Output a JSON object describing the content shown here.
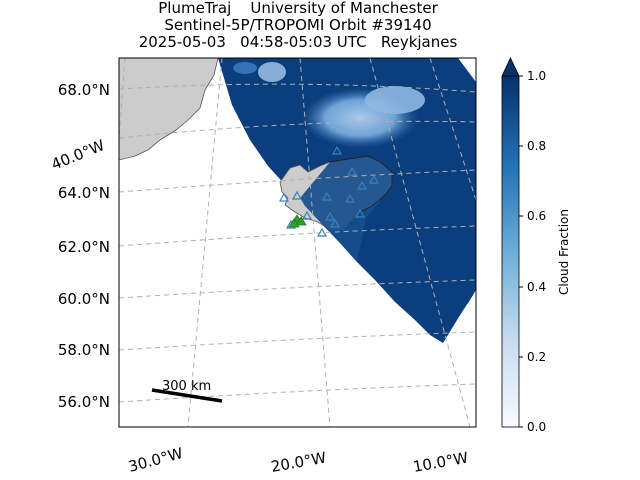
{
  "title": {
    "line1": "PlumeTraj    University of Manchester",
    "line2": "Sentinel-5P/TROPOMI Orbit #39140",
    "line3": "2025-05-03   04:58-05:03 UTC   Reykjanes"
  },
  "map": {
    "lat_labels": [
      "68.0°N",
      "66.0°N",
      "64.0°N",
      "62.0°N",
      "60.0°N",
      "58.0°N",
      "56.0°N"
    ],
    "lon_labels": [
      "40.0°W",
      "30.0°W",
      "20.0°W",
      "10.0°W"
    ],
    "scale_bar_label": "300 km",
    "colors": {
      "land": "#cccccc",
      "coast": "#555555",
      "grid": "#b0b0b0",
      "swath": "#0b3e7c",
      "cloud_light": "#6fa3d6",
      "station_marker": "#3a7fc0",
      "vent_marker": "#2ca02c"
    },
    "markers": {
      "stations": "triangle-outline",
      "vent": "triangle-filled"
    }
  },
  "colorbar": {
    "label": "Cloud Fraction",
    "ticks": [
      "0.0",
      "0.2",
      "0.4",
      "0.6",
      "0.8",
      "1.0"
    ],
    "cmap": [
      "#f7fbff",
      "#c6dbef",
      "#6baed6",
      "#2171b5",
      "#08306b"
    ]
  }
}
